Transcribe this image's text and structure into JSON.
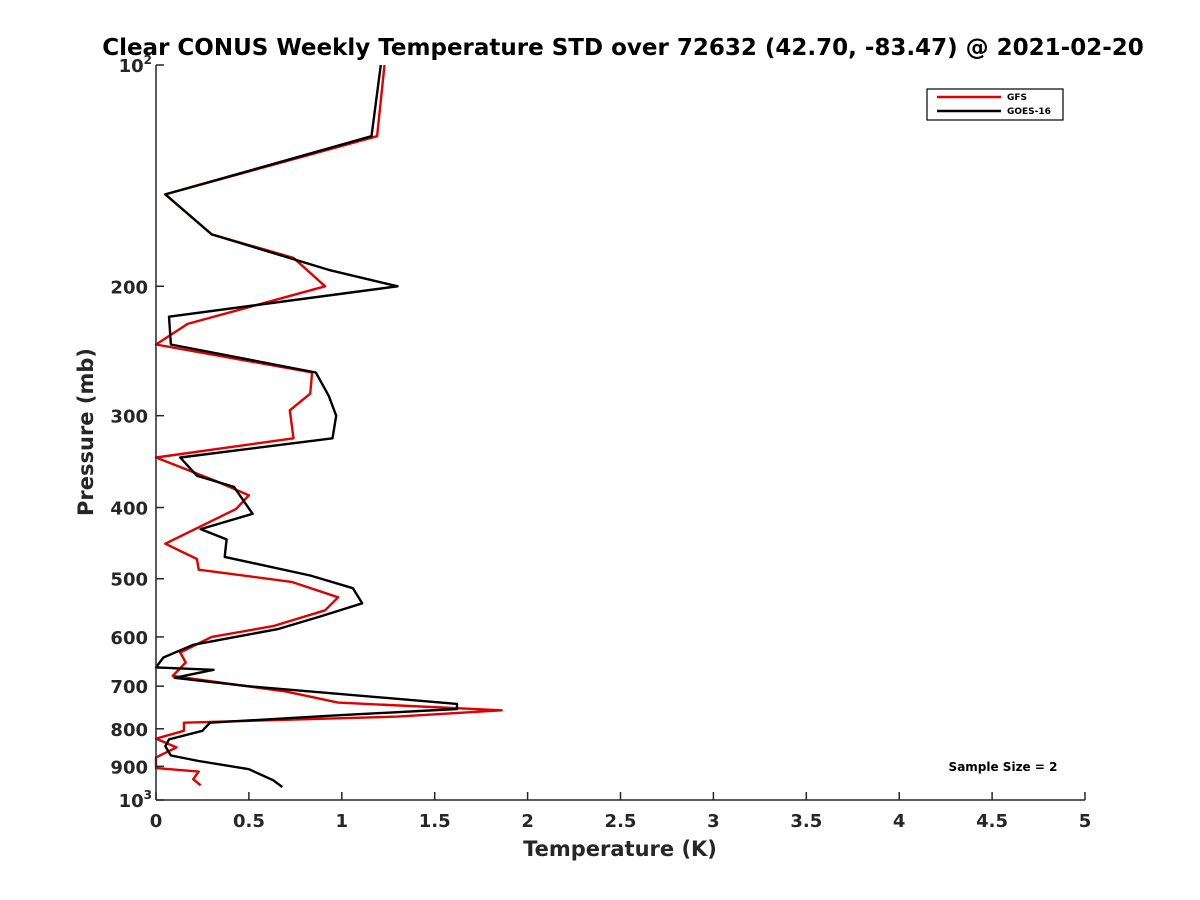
{
  "chart_data": {
    "type": "line",
    "title": "Clear CONUS Weekly Temperature STD over 72632 (42.70, -83.47) @ 2021-02-20",
    "xlabel": "Temperature (K)",
    "ylabel": "Pressure (mb)",
    "xlim": [
      0,
      5
    ],
    "ylim": [
      100,
      1000
    ],
    "yscale": "log",
    "y_reversed": true,
    "x_ticks": [
      "0",
      "0.5",
      "1",
      "1.5",
      "2",
      "2.5",
      "3",
      "3.5",
      "4",
      "4.5",
      "5"
    ],
    "y_ticks": [
      {
        "value": 100,
        "label": "10",
        "exp": "2"
      },
      {
        "value": 200,
        "label": "200"
      },
      {
        "value": 300,
        "label": "300"
      },
      {
        "value": 400,
        "label": "400"
      },
      {
        "value": 500,
        "label": "500"
      },
      {
        "value": 600,
        "label": "600"
      },
      {
        "value": 700,
        "label": "700"
      },
      {
        "value": 800,
        "label": "800"
      },
      {
        "value": 900,
        "label": "900"
      },
      {
        "value": 1000,
        "label": "10",
        "exp": "3"
      }
    ],
    "grid": false,
    "legend_position": "top-right",
    "annotation": "Sample Size = 2",
    "series": [
      {
        "name": "GFS",
        "color": "#e00000",
        "points": [
          [
            1.23,
            100
          ],
          [
            1.19,
            125
          ],
          [
            0.05,
            150
          ],
          [
            0.3,
            170
          ],
          [
            0.74,
            183
          ],
          [
            0.91,
            200
          ],
          [
            0.17,
            225
          ],
          [
            0.0,
            240
          ],
          [
            0.84,
            262
          ],
          [
            0.83,
            280
          ],
          [
            0.72,
            295
          ],
          [
            0.74,
            322
          ],
          [
            0.0,
            342
          ],
          [
            0.32,
            368
          ],
          [
            0.5,
            385
          ],
          [
            0.43,
            402
          ],
          [
            0.05,
            448
          ],
          [
            0.22,
            470
          ],
          [
            0.23,
            486
          ],
          [
            0.73,
            505
          ],
          [
            0.98,
            530
          ],
          [
            0.91,
            552
          ],
          [
            0.63,
            580
          ],
          [
            0.3,
            600
          ],
          [
            0.13,
            630
          ],
          [
            0.16,
            650
          ],
          [
            0.09,
            678
          ],
          [
            0.7,
            712
          ],
          [
            0.98,
            737
          ],
          [
            1.86,
            755
          ],
          [
            1.3,
            770
          ],
          [
            0.15,
            785
          ],
          [
            0.15,
            805
          ],
          [
            0.0,
            825
          ],
          [
            0.11,
            848
          ],
          [
            0.0,
            875
          ],
          [
            0.0,
            905
          ],
          [
            0.23,
            915
          ],
          [
            0.2,
            937
          ],
          [
            0.24,
            955
          ]
        ]
      },
      {
        "name": "GOES-16",
        "color": "#000000",
        "points": [
          [
            1.21,
            100
          ],
          [
            1.16,
            125
          ],
          [
            0.05,
            150
          ],
          [
            0.3,
            170
          ],
          [
            0.93,
            190
          ],
          [
            1.3,
            200
          ],
          [
            0.07,
            220
          ],
          [
            0.08,
            240
          ],
          [
            0.86,
            262
          ],
          [
            0.93,
            282
          ],
          [
            0.97,
            300
          ],
          [
            0.95,
            322
          ],
          [
            0.13,
            342
          ],
          [
            0.22,
            362
          ],
          [
            0.42,
            375
          ],
          [
            0.52,
            408
          ],
          [
            0.24,
            428
          ],
          [
            0.38,
            442
          ],
          [
            0.37,
            467
          ],
          [
            0.83,
            495
          ],
          [
            1.06,
            515
          ],
          [
            1.11,
            540
          ],
          [
            0.89,
            562
          ],
          [
            0.66,
            585
          ],
          [
            0.2,
            615
          ],
          [
            0.04,
            640
          ],
          [
            0.0,
            660
          ],
          [
            0.31,
            665
          ],
          [
            0.1,
            682
          ],
          [
            0.49,
            700
          ],
          [
            1.62,
            740
          ],
          [
            1.62,
            752
          ],
          [
            0.94,
            768
          ],
          [
            0.29,
            785
          ],
          [
            0.25,
            805
          ],
          [
            0.07,
            827
          ],
          [
            0.05,
            845
          ],
          [
            0.08,
            870
          ],
          [
            0.23,
            885
          ],
          [
            0.5,
            908
          ],
          [
            0.57,
            925
          ],
          [
            0.63,
            940
          ],
          [
            0.68,
            960
          ]
        ]
      }
    ]
  }
}
